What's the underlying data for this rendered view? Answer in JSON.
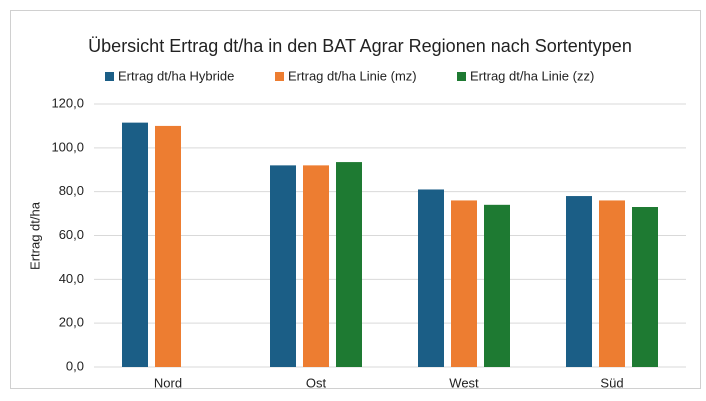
{
  "chart_data": {
    "type": "bar",
    "title": "Übersicht Ertrag dt/ha in den BAT Agrar Regionen nach Sortentypen",
    "y_label": "Ertrag dt/ha",
    "categories": [
      "Nord",
      "Ost",
      "West",
      "Süd"
    ],
    "series": [
      {
        "name": "Ertrag dt/ha Hybride",
        "color": "#1b5e86",
        "values": [
          111.5,
          92,
          81,
          78
        ]
      },
      {
        "name": "Ertrag dt/ha Linie (mz)",
        "color": "#ed7d31",
        "values": [
          110,
          92,
          76,
          76
        ]
      },
      {
        "name": "Ertrag dt/ha Linie (zz)",
        "color": "#1e7a32",
        "values": [
          null,
          93.5,
          74,
          73
        ]
      }
    ],
    "ylim": [
      0,
      120
    ],
    "yticks": [
      {
        "value": 0,
        "label": "0,0"
      },
      {
        "value": 20,
        "label": "20,0"
      },
      {
        "value": 40,
        "label": "40,0"
      },
      {
        "value": 60,
        "label": "60,0"
      },
      {
        "value": 80,
        "label": "80,0"
      },
      {
        "value": 100,
        "label": "100,0"
      },
      {
        "value": 120,
        "label": "120,0"
      }
    ],
    "grid": true,
    "legend": "top"
  }
}
